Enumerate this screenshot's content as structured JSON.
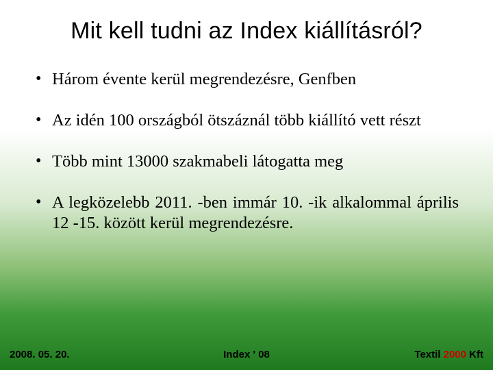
{
  "slide": {
    "title": "Mit kell tudni az Index kiállításról?",
    "bullets": [
      "Három évente kerül megrendezésre, Genfben",
      "Az idén 100 országból ötszáznál több kiállító vett részt",
      "Több mint 13000 szakmabeli látogatta meg",
      "A legközelebb 2011. -ben immár 10. -ik alkalommal április 12 -15. között kerül megrendezésre."
    ]
  },
  "footer": {
    "date": "2008. 05. 20.",
    "center": "Index ' 08",
    "right_prefix": "Textil ",
    "right_year": "2000",
    "right_suffix": " Kft"
  },
  "colors": {
    "accent_red": "#cc0000",
    "text": "#000000",
    "bg_top": "#ffffff",
    "bg_bottom": "#1f7a1f"
  }
}
